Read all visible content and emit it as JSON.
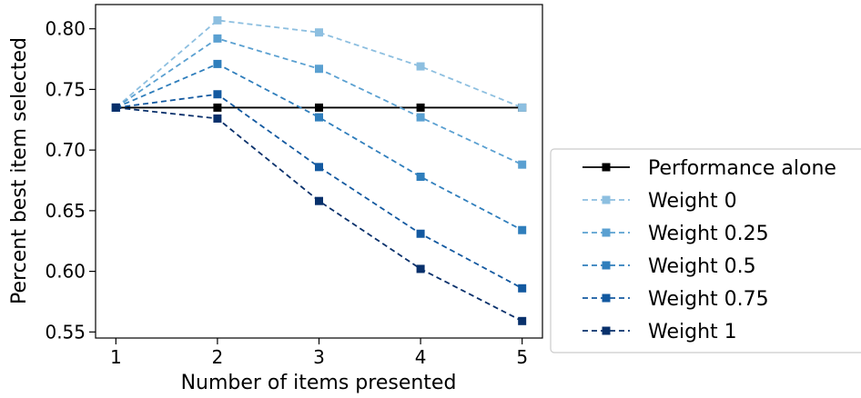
{
  "chart_data": {
    "type": "line",
    "xlabel": "Number of items presented",
    "ylabel": "Percent best item selected",
    "x": [
      1,
      2,
      3,
      4,
      5
    ],
    "xticks": [
      "1",
      "2",
      "3",
      "4",
      "5"
    ],
    "ylim": [
      0.545,
      0.82
    ],
    "yticks": [
      "0.55",
      "0.60",
      "0.65",
      "0.70",
      "0.75",
      "0.80"
    ],
    "grid": false,
    "legend_position": "right",
    "series": [
      {
        "name": "Performance alone",
        "values": [
          0.735,
          0.735,
          0.735,
          0.735,
          0.735
        ],
        "color": "#000000",
        "linestyle": "solid",
        "marker": "square"
      },
      {
        "name": "Weight 0",
        "values": [
          0.735,
          0.807,
          0.797,
          0.769,
          0.735
        ],
        "color": "#8dbfe0",
        "linestyle": "dashed",
        "marker": "square"
      },
      {
        "name": "Weight 0.25",
        "values": [
          0.735,
          0.792,
          0.767,
          0.727,
          0.688
        ],
        "color": "#5aa0d1",
        "linestyle": "dashed",
        "marker": "square"
      },
      {
        "name": "Weight 0.5",
        "values": [
          0.735,
          0.771,
          0.727,
          0.678,
          0.634
        ],
        "color": "#2f7ebc",
        "linestyle": "dashed",
        "marker": "square"
      },
      {
        "name": "Weight 0.75",
        "values": [
          0.735,
          0.746,
          0.686,
          0.631,
          0.586
        ],
        "color": "#1359a0",
        "linestyle": "dashed",
        "marker": "square"
      },
      {
        "name": "Weight 1",
        "values": [
          0.735,
          0.726,
          0.658,
          0.602,
          0.559
        ],
        "color": "#08306b",
        "linestyle": "dashed",
        "marker": "square"
      }
    ]
  }
}
